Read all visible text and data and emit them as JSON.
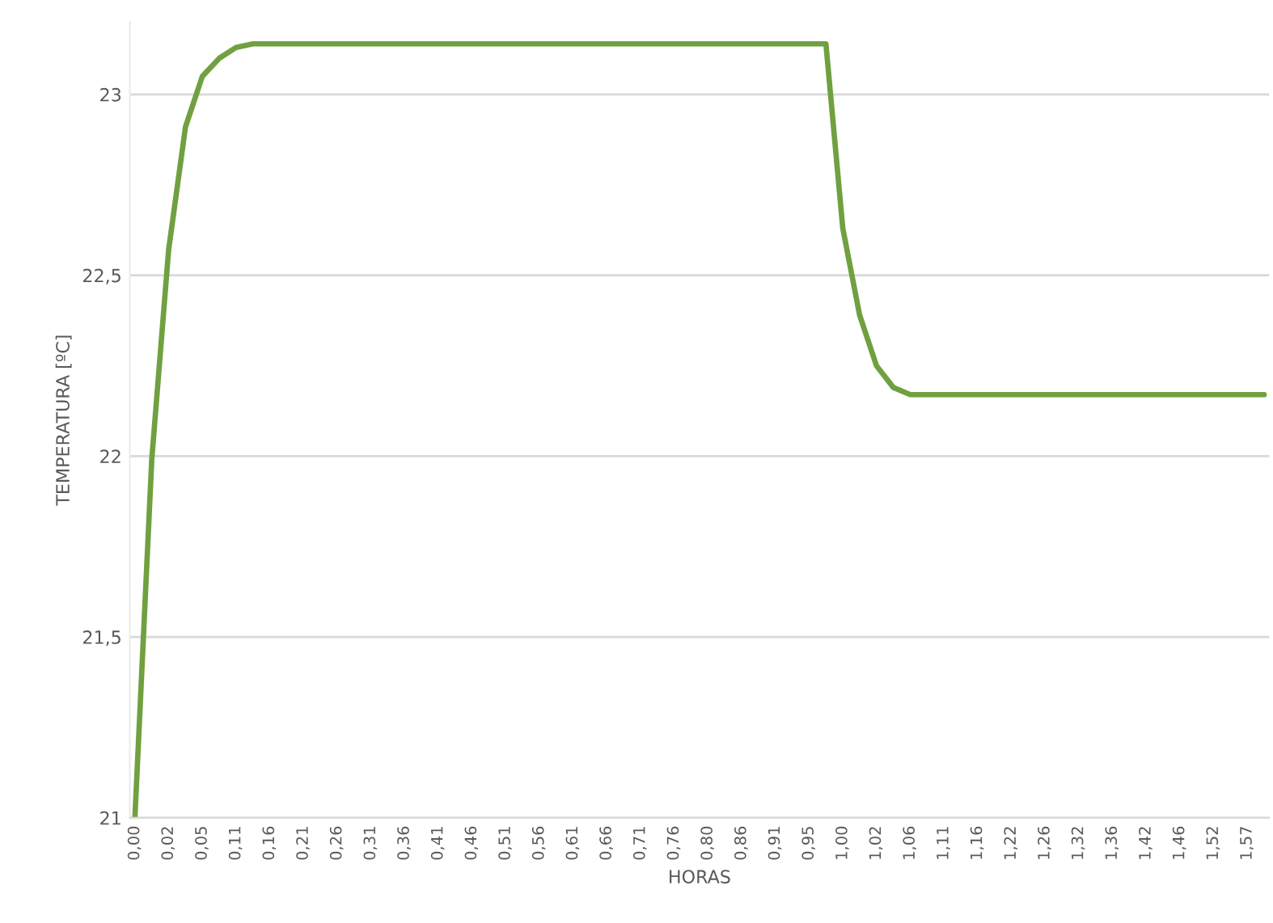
{
  "chart_data": {
    "type": "line",
    "xlabel": "HORAS",
    "ylabel": "TEMPERATURA [ºC]",
    "categories": [
      "0,00",
      null,
      "0,02",
      null,
      "0,05",
      null,
      "0,11",
      null,
      "0,16",
      null,
      "0,21",
      null,
      "0,26",
      null,
      "0,31",
      null,
      "0,36",
      null,
      "0,41",
      null,
      "0,46",
      null,
      "0,51",
      null,
      "0,56",
      null,
      "0,61",
      null,
      "0,66",
      null,
      "0,71",
      null,
      "0,76",
      null,
      "0,80",
      null,
      "0,86",
      null,
      "0,91",
      null,
      "0,95",
      null,
      "1,00",
      null,
      "1,02",
      null,
      "1,06",
      null,
      "1,11",
      null,
      "1,16",
      null,
      "1,22",
      null,
      "1,26",
      null,
      "1,32",
      null,
      "1,36",
      null,
      "1,42",
      null,
      "1,46",
      null,
      "1,52",
      null,
      "1,57",
      null
    ],
    "series": [
      {
        "color": "#70a040",
        "values": [
          21.0,
          21.99,
          22.57,
          22.91,
          23.05,
          23.1,
          23.13,
          23.14,
          23.14,
          23.14,
          23.14,
          23.14,
          23.14,
          23.14,
          23.14,
          23.14,
          23.14,
          23.14,
          23.14,
          23.14,
          23.14,
          23.14,
          23.14,
          23.14,
          23.14,
          23.14,
          23.14,
          23.14,
          23.14,
          23.14,
          23.14,
          23.14,
          23.14,
          23.14,
          23.14,
          23.14,
          23.14,
          23.14,
          23.14,
          23.14,
          23.14,
          23.14,
          22.63,
          22.39,
          22.25,
          22.19,
          22.17,
          22.17,
          22.17,
          22.17,
          22.17,
          22.17,
          22.17,
          22.17,
          22.17,
          22.17,
          22.17,
          22.17,
          22.17,
          22.17,
          22.17,
          22.17,
          22.17,
          22.17,
          22.17,
          22.17,
          22.17,
          22.17
        ]
      }
    ],
    "ylim": [
      21,
      23.2
    ],
    "yticks": [
      21,
      {
        "value": 21.5,
        "label": "21,5"
      },
      22,
      {
        "value": 22.5,
        "label": "22,5"
      },
      23
    ],
    "grid": "y",
    "marker": "none",
    "line_style": "solid"
  }
}
